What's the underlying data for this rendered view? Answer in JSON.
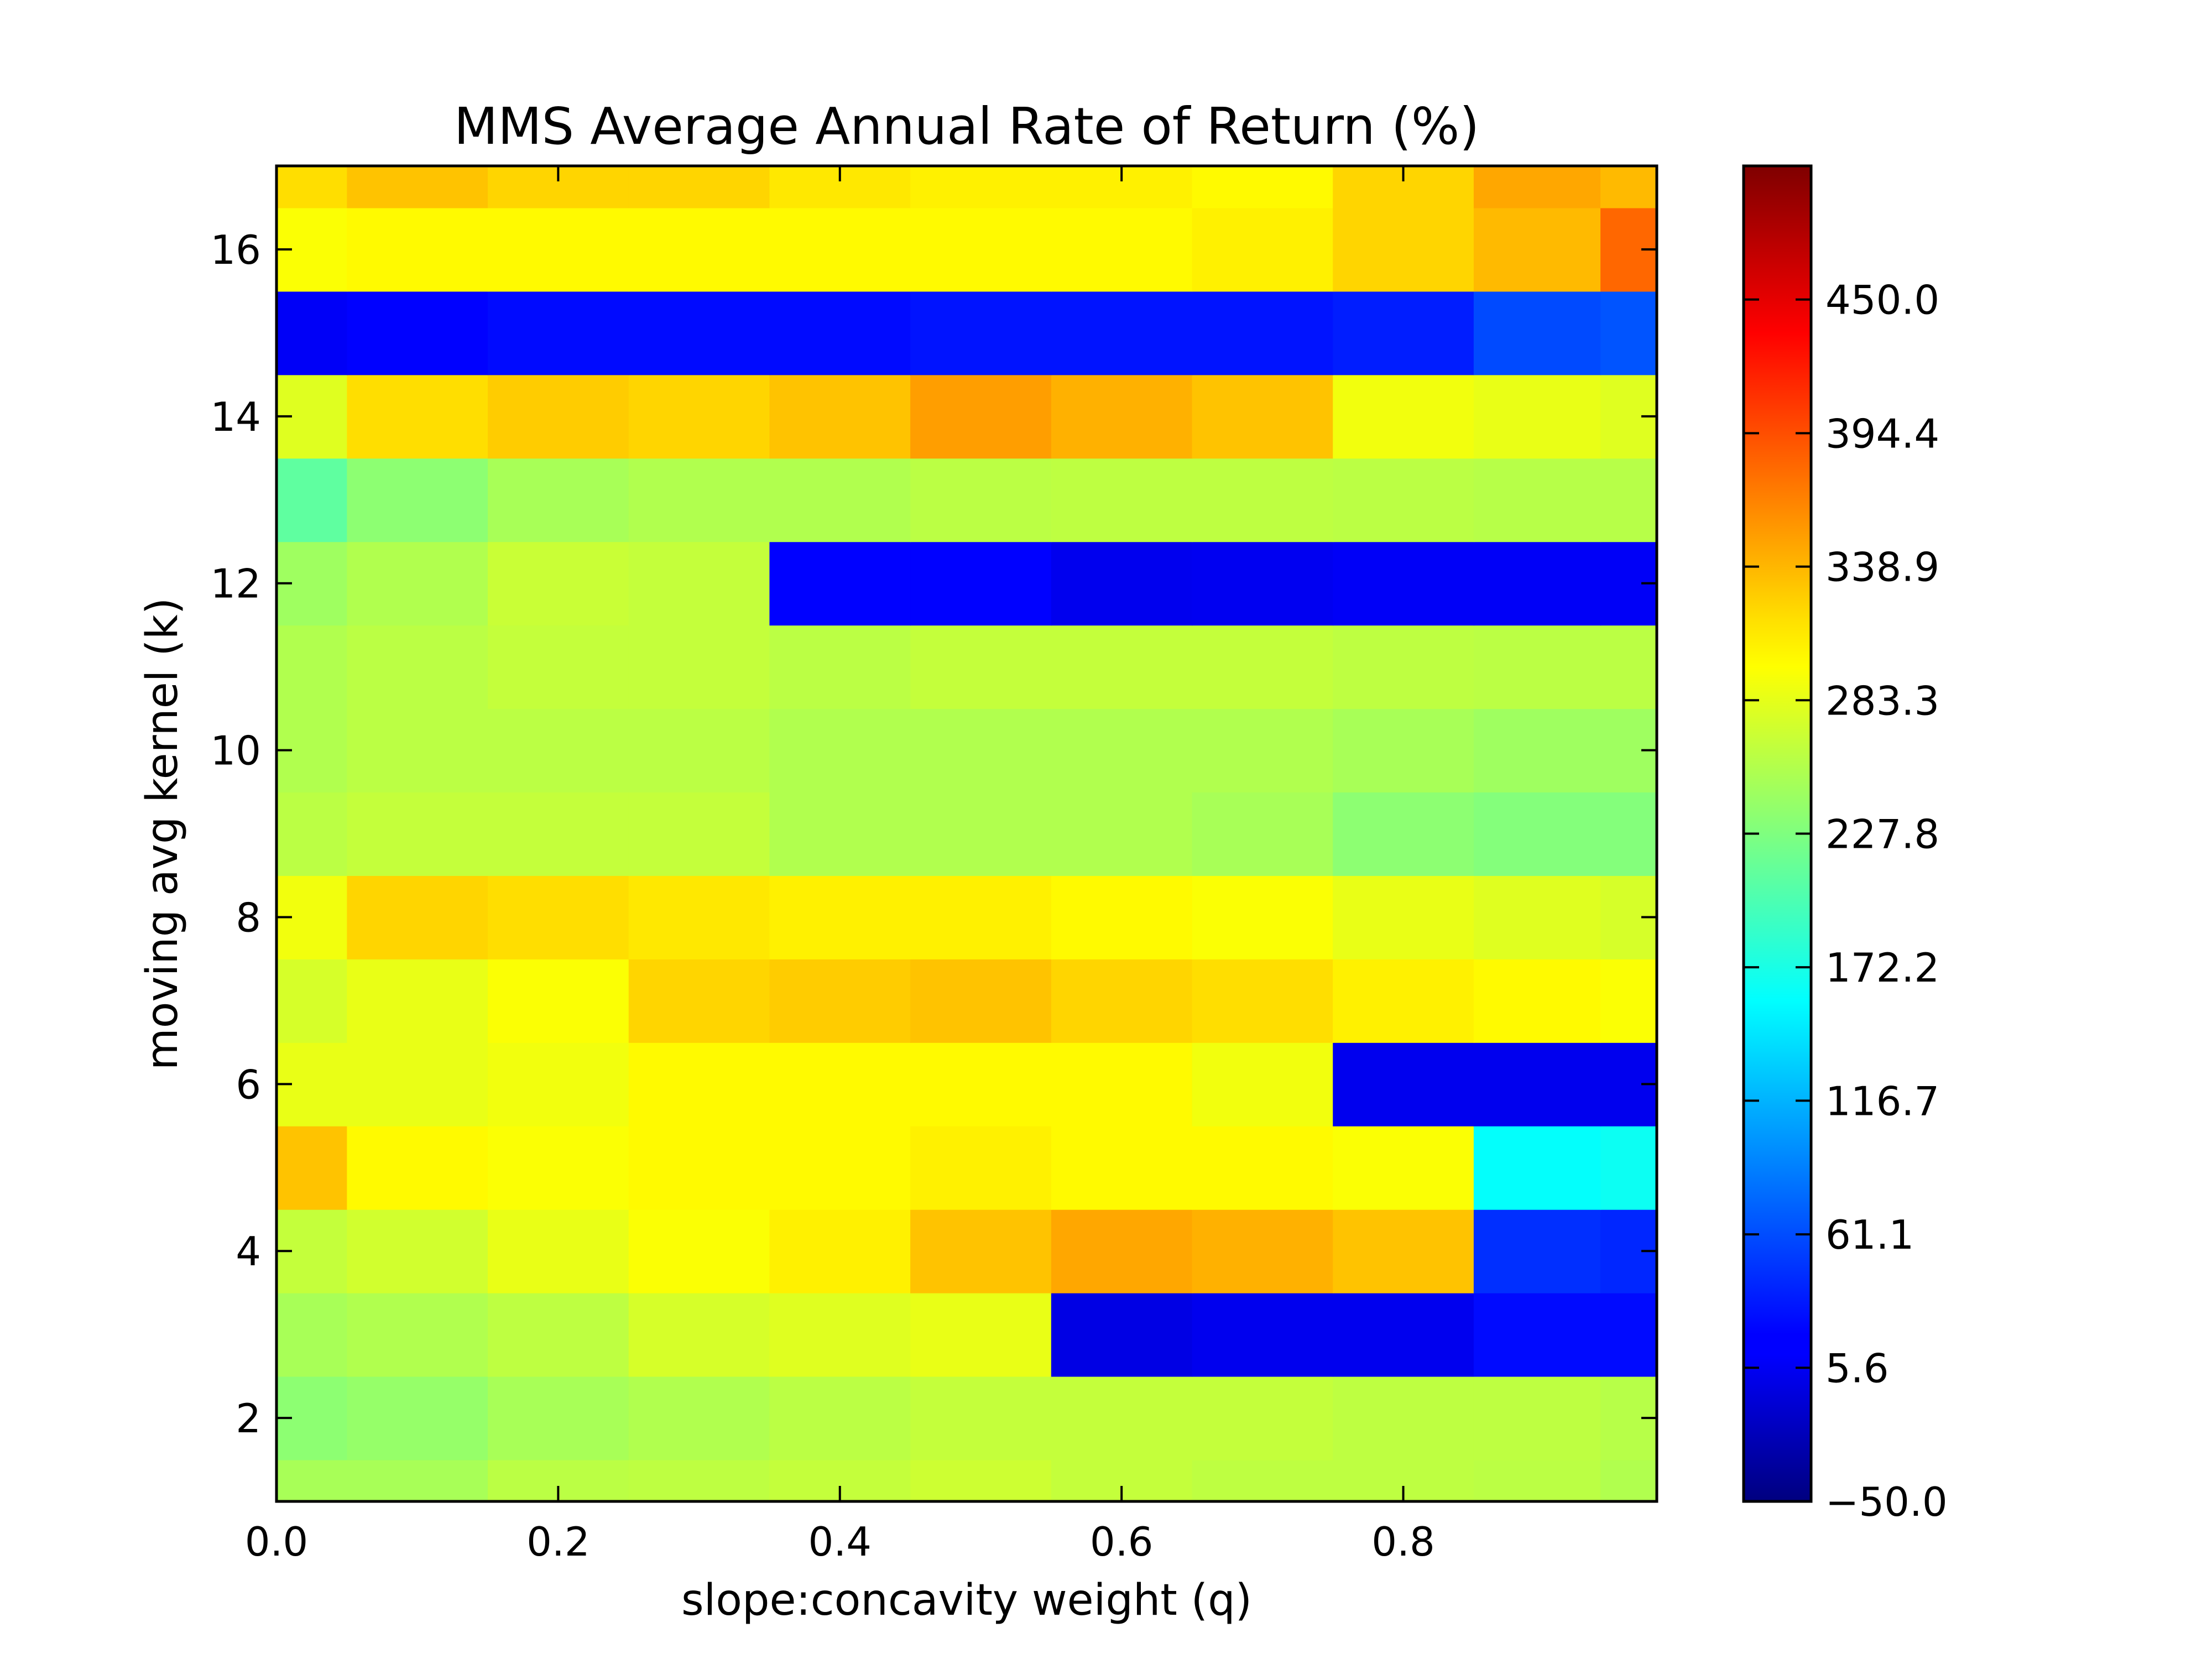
{
  "chart_data": {
    "type": "heatmap",
    "title": "MMS Average Annual Rate of Return (%)",
    "xlabel": "slope:concavity weight (q)",
    "ylabel": "moving avg kernel (k)",
    "xlim": [
      0.0,
      0.98
    ],
    "ylim": [
      1,
      17
    ],
    "x_ticks": [
      0.0,
      0.2,
      0.4,
      0.6,
      0.8
    ],
    "x_tick_labels": [
      "0.0",
      "0.2",
      "0.4",
      "0.6",
      "0.8"
    ],
    "y_ticks": [
      2,
      4,
      6,
      8,
      10,
      12,
      14,
      16
    ],
    "y_tick_labels": [
      "2",
      "4",
      "6",
      "8",
      "10",
      "12",
      "14",
      "16"
    ],
    "colorbar": {
      "range": [
        -50.0,
        505.6
      ],
      "colormap": "jet",
      "ticks": [
        -50.0,
        5.6,
        61.1,
        116.7,
        172.2,
        227.8,
        283.3,
        338.9,
        394.4,
        450.0
      ],
      "tick_labels": [
        "−50.0",
        "5.6",
        "61.1",
        "116.7",
        "172.2",
        "227.8",
        "283.3",
        "338.9",
        "394.4",
        "450.0"
      ]
    },
    "x": [
      0.0,
      0.1,
      0.2,
      0.3,
      0.4,
      0.5,
      0.6,
      0.7,
      0.8,
      0.9,
      0.98
    ],
    "y": [
      1,
      2,
      3,
      4,
      5,
      6,
      7,
      8,
      9,
      10,
      11,
      12,
      13,
      14,
      15,
      16,
      17
    ],
    "z": [
      [
        250,
        250,
        260,
        262,
        265,
        270,
        265,
        262,
        262,
        260,
        255
      ],
      [
        235,
        240,
        250,
        255,
        260,
        265,
        265,
        265,
        262,
        262,
        258
      ],
      [
        250,
        255,
        262,
        275,
        280,
        285,
        5,
        10,
        10,
        25,
        25
      ],
      [
        265,
        272,
        285,
        295,
        305,
        330,
        345,
        340,
        330,
        45,
        40
      ],
      [
        330,
        300,
        295,
        300,
        300,
        305,
        300,
        300,
        295,
        160,
        165
      ],
      [
        285,
        285,
        290,
        300,
        300,
        300,
        300,
        290,
        10,
        10,
        10
      ],
      [
        275,
        285,
        295,
        320,
        325,
        330,
        320,
        315,
        305,
        300,
        295
      ],
      [
        290,
        320,
        315,
        310,
        305,
        305,
        300,
        295,
        285,
        280,
        275
      ],
      [
        260,
        265,
        265,
        265,
        255,
        255,
        255,
        250,
        235,
        230,
        230
      ],
      [
        255,
        260,
        260,
        260,
        255,
        255,
        255,
        255,
        250,
        245,
        245
      ],
      [
        255,
        260,
        265,
        265,
        260,
        265,
        265,
        265,
        262,
        260,
        260
      ],
      [
        245,
        255,
        268,
        265,
        20,
        20,
        10,
        12,
        15,
        15,
        15
      ],
      [
        210,
        235,
        250,
        255,
        255,
        260,
        262,
        262,
        260,
        258,
        258
      ],
      [
        280,
        315,
        325,
        320,
        330,
        350,
        340,
        330,
        290,
        285,
        280
      ],
      [
        15,
        20,
        25,
        25,
        25,
        30,
        30,
        30,
        35,
        60,
        65
      ],
      [
        295,
        300,
        300,
        300,
        300,
        300,
        300,
        305,
        320,
        335,
        380
      ],
      [
        315,
        330,
        320,
        320,
        310,
        305,
        305,
        300,
        320,
        345,
        335
      ]
    ]
  }
}
